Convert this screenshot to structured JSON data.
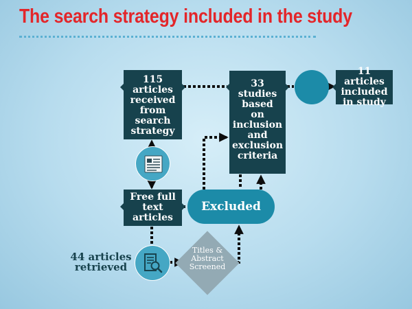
{
  "title": "The search strategy included in the study",
  "nodes": {
    "articles_received": "115\narticles\nreceived\nfrom\nsearch\nstrategy",
    "studies_based": "33 studies\nbased\non\ninclusion\nand\nexclusion\ncriteria",
    "articles_included": "11 articles\nincluded\nin study",
    "free_full_text": "Free full\ntext\narticles",
    "excluded": "Excluded",
    "titles_abstract": "Titles &\nAbstract\nScreened",
    "articles_retrieved": "44 articles\nretrieved"
  },
  "icons": {
    "document": "document-icon",
    "search_document": "search-document-icon"
  },
  "colors": {
    "title": "#e3262a",
    "dark_box": "#17424d",
    "teal": "#1c8ba8",
    "light_teal": "#45a7c4",
    "diamond": "#93aab4",
    "connector": "#0d0d0d"
  }
}
